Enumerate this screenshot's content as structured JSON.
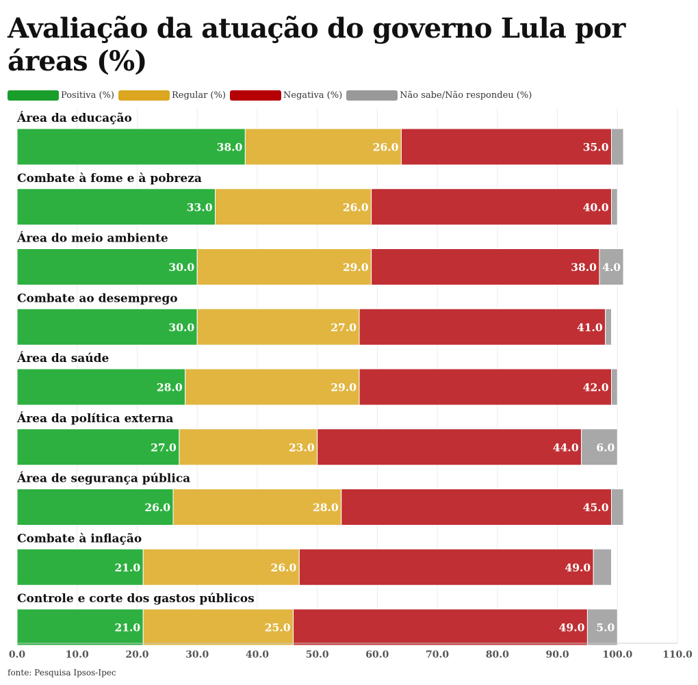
{
  "title": "Avaliação da atuação do governo Lula por áreas (%)",
  "source": "fonte: Pesquisa Ipsos-Ipec",
  "chart_data": {
    "type": "bar",
    "orientation": "horizontal",
    "stacked": true,
    "title": "Avaliação da atuação do governo Lula por áreas (%)",
    "xlabel": "",
    "ylabel": "",
    "xlim": [
      0,
      110
    ],
    "xticks": [
      "0.0",
      "10.0",
      "20.0",
      "30.0",
      "40.0",
      "50.0",
      "60.0",
      "70.0",
      "80.0",
      "90.0",
      "100.0",
      "110.0"
    ],
    "grid": true,
    "legend_position": "top-left",
    "categories": [
      "Área da educação",
      "Combate à fome e à pobreza",
      "Área do meio ambiente",
      "Combate ao desemprego",
      "Área da saúde",
      "Área da política externa",
      "Área de segurança pública",
      "Combate à inflação",
      "Controle e corte dos gastos públicos"
    ],
    "series": [
      {
        "name": "Positiva (%)",
        "color": "#2db040",
        "legend_color": "#1a9e2b",
        "values": [
          38,
          33,
          30,
          30,
          28,
          27,
          26,
          21,
          21
        ],
        "labels": [
          "38.0",
          "33.0",
          "30.0",
          "30.0",
          "28.0",
          "27.0",
          "26.0",
          "21.0",
          "21.0"
        ]
      },
      {
        "name": "Regular (%)",
        "color": "#e1b540",
        "legend_color": "#dca620",
        "values": [
          26,
          26,
          29,
          27,
          29,
          23,
          28,
          26,
          25
        ],
        "labels": [
          "26.0",
          "26.0",
          "29.0",
          "27.0",
          "29.0",
          "23.0",
          "28.0",
          "26.0",
          "25.0"
        ]
      },
      {
        "name": "Negativa (%)",
        "color": "#c02f33",
        "legend_color": "#b50005",
        "values": [
          35,
          40,
          38,
          41,
          42,
          44,
          45,
          49,
          49
        ],
        "labels": [
          "35.0",
          "40.0",
          "38.0",
          "41.0",
          "42.0",
          "44.0",
          "45.0",
          "49.0",
          "49.0"
        ]
      },
      {
        "name": "Não sabe/Não respondeu (%)",
        "color": "#a8a8a8",
        "legend_color": "#999999",
        "values": [
          2,
          1,
          4,
          1,
          1,
          6,
          2,
          3,
          5
        ],
        "labels": [
          "",
          "",
          "4.0",
          "",
          "",
          "6.0",
          "",
          "",
          "5.0"
        ]
      }
    ]
  }
}
